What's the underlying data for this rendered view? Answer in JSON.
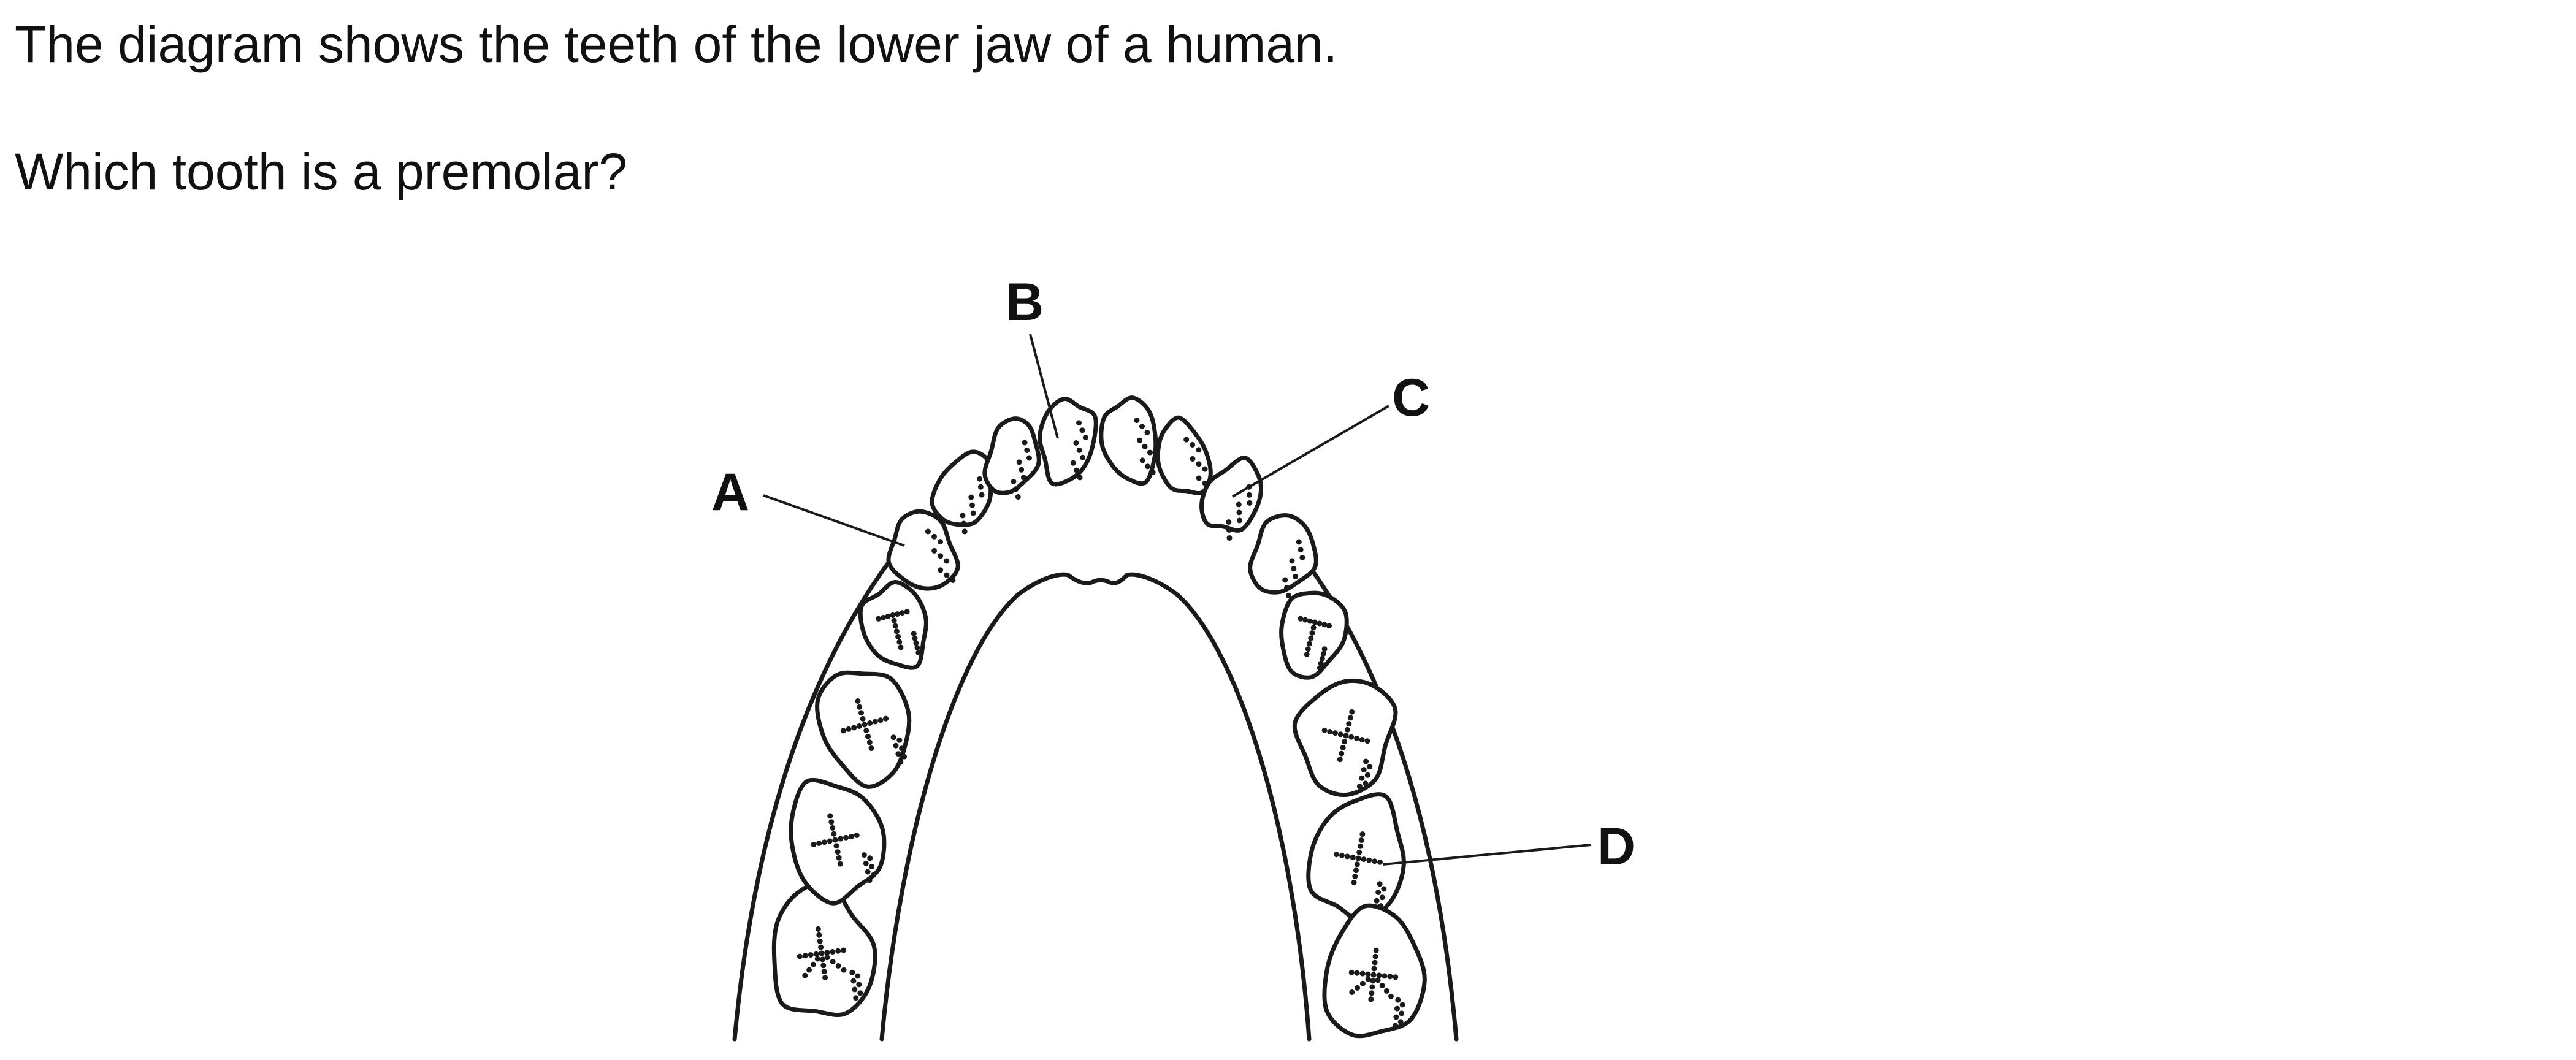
{
  "question": {
    "intro": "The diagram shows the teeth of the lower jaw of a human.",
    "prompt": "Which tooth is a premolar?"
  },
  "diagram": {
    "labels": {
      "a": "A",
      "b": "B",
      "c": "C",
      "d": "D"
    }
  }
}
